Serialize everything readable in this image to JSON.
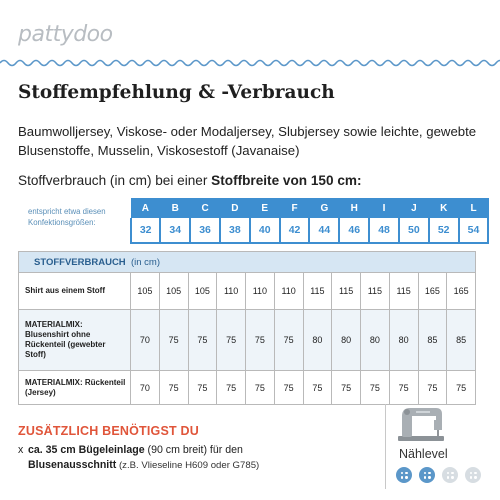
{
  "brand": {
    "logo_text": "pattydoo"
  },
  "title": "Stoffempfehlung & -Verbrauch",
  "fabrics": "Baumwolljersey, Viskose- oder Modaljersey, Slubjersey sowie leichte, gewebte Blusenstoffe, Musselin, Viskosestoff (Javanaise)",
  "usage_line": {
    "prefix": "Stoffverbrauch (in cm) bei einer ",
    "emphasis": "Stoffbreite von 150 cm:"
  },
  "size_note": "entspricht etwa diesen Konfektionsgrößen:",
  "sizes": {
    "letters": [
      "A",
      "B",
      "C",
      "D",
      "E",
      "F",
      "G",
      "H",
      "I",
      "J",
      "K",
      "L"
    ],
    "numbers": [
      "32",
      "34",
      "36",
      "38",
      "40",
      "42",
      "44",
      "46",
      "48",
      "50",
      "52",
      "54"
    ]
  },
  "table": {
    "header_bold": "STOFFVERBRAUCH",
    "header_unit": "(in cm)",
    "rows": [
      {
        "label": "Shirt aus einem Stoff",
        "values": [
          "105",
          "105",
          "105",
          "110",
          "110",
          "110",
          "115",
          "115",
          "115",
          "115",
          "165",
          "165"
        ]
      },
      {
        "label": "MATERIALMIX: Blusenshirt ohne Rückenteil (gewebter Stoff)",
        "values": [
          "70",
          "75",
          "75",
          "75",
          "75",
          "75",
          "80",
          "80",
          "80",
          "80",
          "85",
          "85"
        ]
      },
      {
        "label": "MATERIALMIX: Rückenteil (Jersey)",
        "values": [
          "70",
          "75",
          "75",
          "75",
          "75",
          "75",
          "75",
          "75",
          "75",
          "75",
          "75",
          "75"
        ]
      }
    ]
  },
  "extra": {
    "title": "ZUSÄTZLICH BENÖTIGST DU",
    "marker": "x",
    "amount": "ca. 35 cm Bügeleinlage",
    "amount_note": " (90 cm breit) für den",
    "purpose": "Blusenausschnitt",
    "purpose_note": " (z.B. Vlieseline H609 oder G785)"
  },
  "level": {
    "label": "Nählevel",
    "value": 2,
    "max": 4,
    "icon": "sewing-machine-icon"
  },
  "colors": {
    "accent_blue": "#3d8ed0",
    "accent_orange": "#e0553a",
    "shade": "#d6e6f3"
  }
}
